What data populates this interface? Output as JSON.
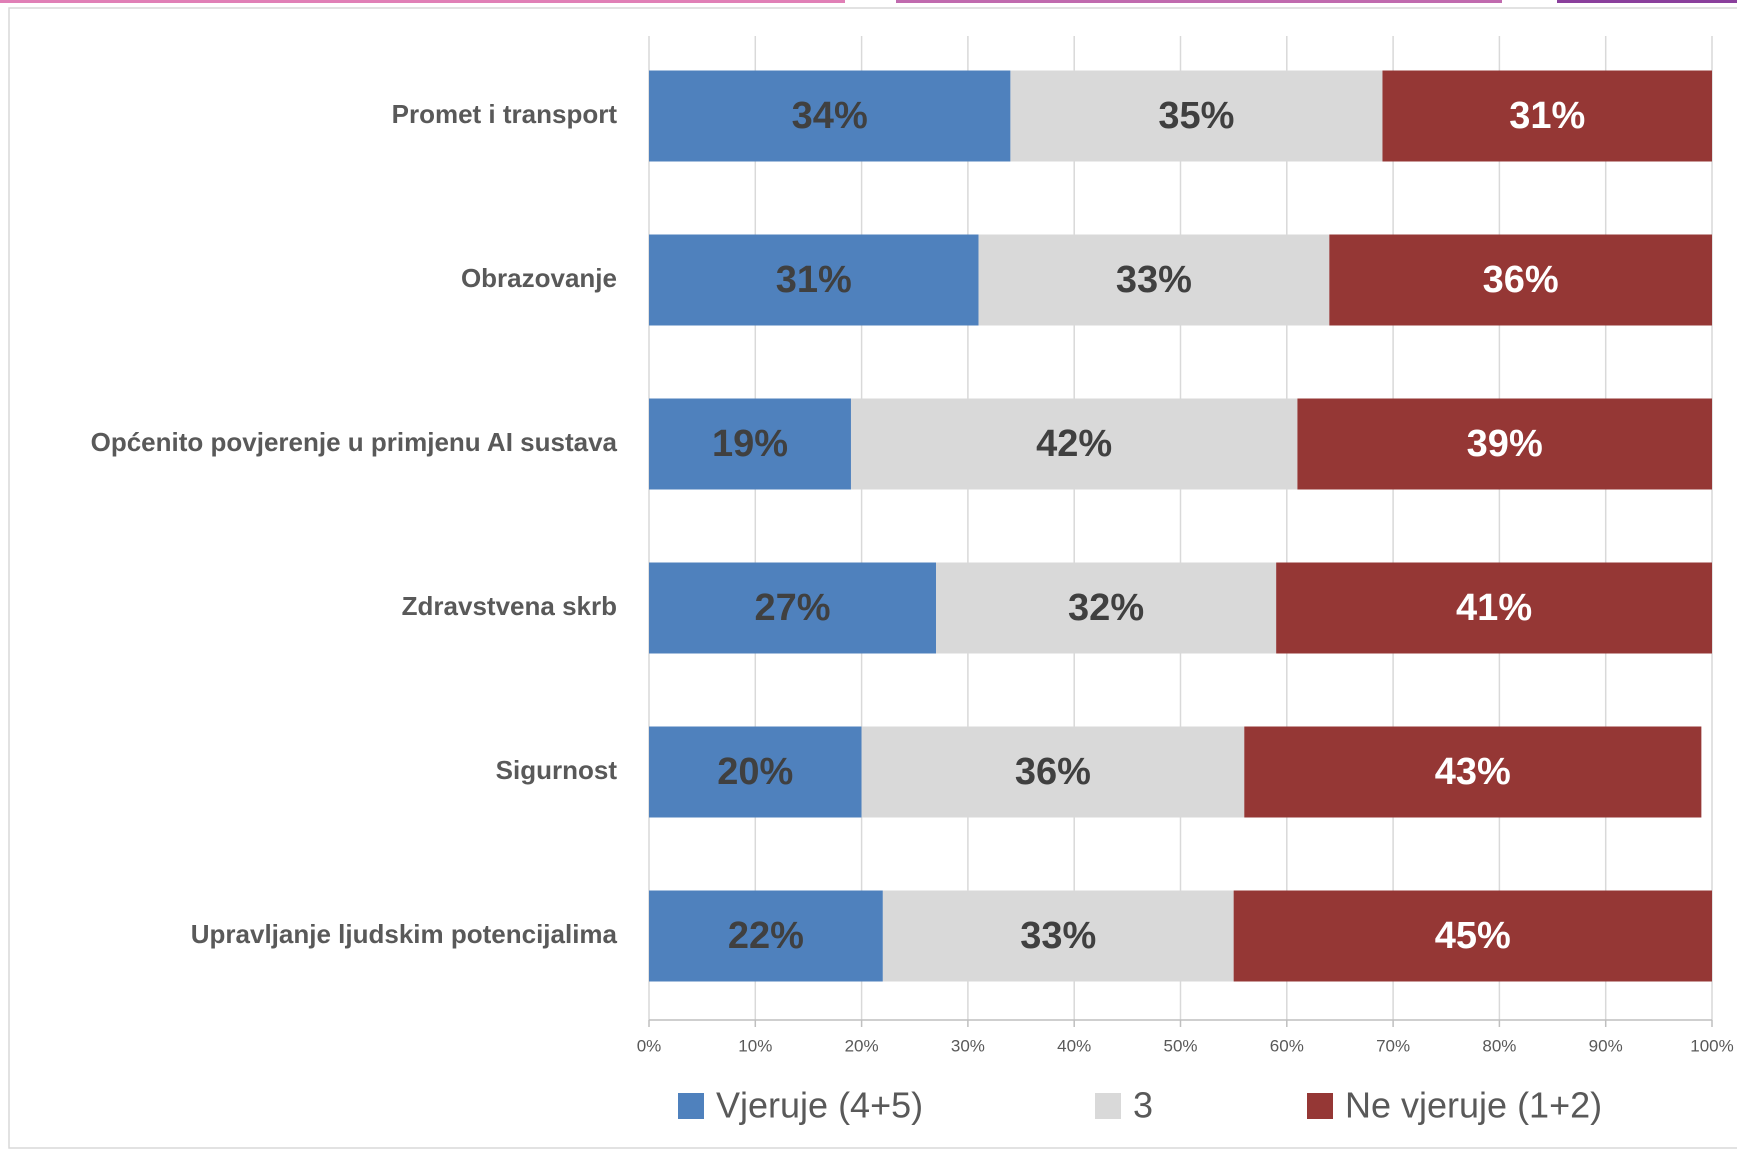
{
  "chart_data": {
    "type": "stacked_barh",
    "categories": [
      "Promet i transport",
      "Obrazovanje",
      "Općenito povjerenje u primjenu AI sustava",
      "Zdravstvena skrb",
      "Sigurnost",
      "Upravljanje ljudskim potencijalima"
    ],
    "series": [
      {
        "name": "Vjeruje (4+5)",
        "color": "#4f81bd",
        "label_color": "#404040",
        "values": [
          34,
          31,
          19,
          27,
          20,
          22
        ],
        "value_labels": [
          "34%",
          "31%",
          "19%",
          "27%",
          "20%",
          "22%"
        ]
      },
      {
        "name": "3",
        "color": "#d9d9d9",
        "label_color": "#404040",
        "values": [
          35,
          33,
          42,
          32,
          36,
          33
        ],
        "value_labels": [
          "35%",
          "33%",
          "42%",
          "32%",
          "36%",
          "33%"
        ]
      },
      {
        "name": "Ne vjeruje (1+2)",
        "color": "#953735",
        "label_color": "#ffffff",
        "values": [
          31,
          36,
          39,
          41,
          43,
          45
        ],
        "value_labels": [
          "31%",
          "36%",
          "39%",
          "41%",
          "43%",
          "45%"
        ]
      }
    ],
    "xlim": [
      0,
      100
    ],
    "xticks": [
      {
        "value": 0,
        "label": "0%"
      },
      {
        "value": 10,
        "label": "10%"
      },
      {
        "value": 20,
        "label": "20%"
      },
      {
        "value": 30,
        "label": "30%"
      },
      {
        "value": 40,
        "label": "40%"
      },
      {
        "value": 50,
        "label": "50%"
      },
      {
        "value": 60,
        "label": "60%"
      },
      {
        "value": 70,
        "label": "70%"
      },
      {
        "value": 80,
        "label": "80%"
      },
      {
        "value": 90,
        "label": "90%"
      },
      {
        "value": 100,
        "label": "100%"
      }
    ],
    "grid": true,
    "legend": "bottom"
  }
}
